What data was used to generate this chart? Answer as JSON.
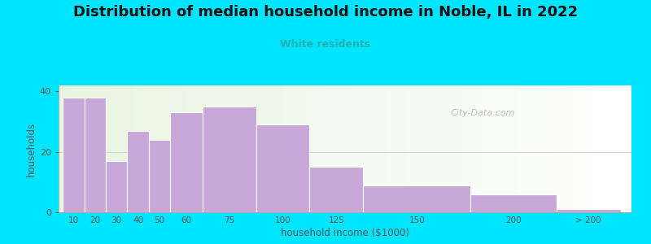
{
  "title": "Distribution of median household income in Noble, IL in 2022",
  "subtitle": "White residents",
  "xlabel": "household income ($1000)",
  "ylabel": "households",
  "bar_color": "#c8a8d8",
  "bar_edge_color": "#ffffff",
  "background_fig": "#00e5ff",
  "ylim": [
    0,
    42
  ],
  "yticks": [
    0,
    20,
    40
  ],
  "title_fontsize": 13,
  "subtitle_color": "#20b0b0",
  "ylabel_color": "#555555",
  "xlabel_color": "#555555",
  "tick_color": "#555555",
  "bar_heights": [
    38,
    38,
    17,
    27,
    24,
    33,
    35,
    29,
    15,
    9,
    6,
    1
  ],
  "bar_labels": [
    "10",
    "20",
    "30",
    "40",
    "50",
    "60",
    "75",
    "100",
    "125",
    "150",
    "200",
    "> 200"
  ],
  "left_edges": [
    10,
    20,
    30,
    40,
    50,
    60,
    75,
    100,
    125,
    150,
    200,
    240
  ],
  "bar_widths": [
    10,
    10,
    10,
    10,
    10,
    15,
    25,
    25,
    25,
    50,
    40,
    30
  ],
  "xlim": [
    8,
    275
  ],
  "watermark_text": "City-Data.com",
  "watermark_color": "#b0b8b0"
}
